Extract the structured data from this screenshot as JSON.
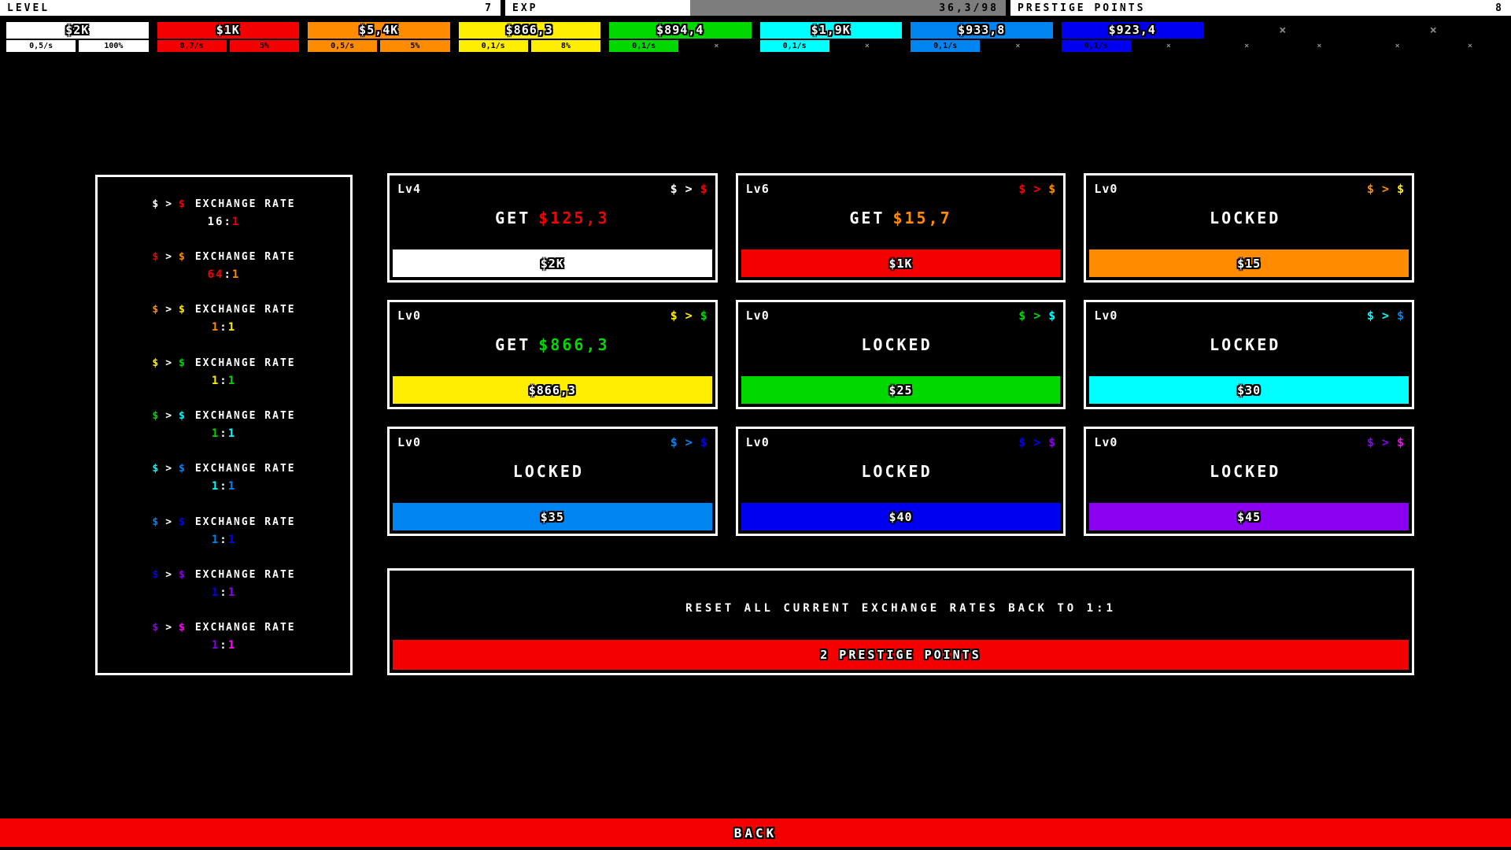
{
  "palette": {
    "white": "#ffffff",
    "red": "#f30000",
    "orange": "#ff8c00",
    "yellow": "#ffee00",
    "green": "#00d800",
    "cyan": "#00ffff",
    "skyblue": "#0084f0",
    "blue": "#0000f0",
    "purple": "#8a00f0",
    "magenta": "#ff00ff",
    "gray": "#7d7d7d",
    "x_mark": "#8a8a8a"
  },
  "header": {
    "level_label": "LEVEL",
    "level_value": "7",
    "exp_label": "EXP",
    "exp_value": "36,3/98",
    "exp_percent": 37,
    "prestige_label": "PRESTIGE POINTS",
    "prestige_value": "8"
  },
  "currencies": [
    {
      "amount": "$2K",
      "color": "white",
      "rate": "0,5/s",
      "rate_bg": "white",
      "percent": "100%",
      "percent_bg": "white"
    },
    {
      "amount": "$1K",
      "color": "red",
      "rate": "0,7/s",
      "rate_bg": "red",
      "percent": "5%",
      "percent_bg": "red"
    },
    {
      "amount": "$5,4K",
      "color": "orange",
      "rate": "0,5/s",
      "rate_bg": "orange",
      "percent": "5%",
      "percent_bg": "orange"
    },
    {
      "amount": "$866,3",
      "color": "yellow",
      "rate": "0,1/s",
      "rate_bg": "yellow",
      "percent": "8%",
      "percent_bg": "yellow"
    },
    {
      "amount": "$894,4",
      "color": "green",
      "rate": "0,1/s",
      "rate_bg": "green",
      "percent": "×",
      "percent_bg": "locked"
    },
    {
      "amount": "$1,9K",
      "color": "cyan",
      "rate": "0,1/s",
      "rate_bg": "cyan",
      "percent": "×",
      "percent_bg": "locked"
    },
    {
      "amount": "$933,8",
      "color": "skyblue",
      "rate": "0,1/s",
      "rate_bg": "skyblue",
      "percent": "×",
      "percent_bg": "locked"
    },
    {
      "amount": "$923,4",
      "color": "blue",
      "rate": "0,1/s",
      "rate_bg": "blue",
      "percent": "×",
      "percent_bg": "locked"
    },
    {
      "amount": "×",
      "color": "locked",
      "rate": "×",
      "rate_bg": "locked",
      "percent": "×",
      "percent_bg": "locked"
    },
    {
      "amount": "×",
      "color": "locked",
      "rate": "×",
      "rate_bg": "locked",
      "percent": "×",
      "percent_bg": "locked"
    }
  ],
  "exchange_rates": {
    "symbol": "$",
    "arrow": ">",
    "separator": ":",
    "row_label": "EXCHANGE RATE",
    "rows": [
      {
        "from": "white",
        "to": "red",
        "lhs": "16",
        "rhs": "1"
      },
      {
        "from": "red",
        "to": "orange",
        "lhs": "64",
        "rhs": "1"
      },
      {
        "from": "orange",
        "to": "yellow",
        "lhs": "1",
        "rhs": "1"
      },
      {
        "from": "yellow",
        "to": "green",
        "lhs": "1",
        "rhs": "1"
      },
      {
        "from": "green",
        "to": "cyan",
        "lhs": "1",
        "rhs": "1"
      },
      {
        "from": "cyan",
        "to": "skyblue",
        "lhs": "1",
        "rhs": "1"
      },
      {
        "from": "skyblue",
        "to": "blue",
        "lhs": "1",
        "rhs": "1"
      },
      {
        "from": "blue",
        "to": "purple",
        "lhs": "1",
        "rhs": "1"
      },
      {
        "from": "purple",
        "to": "magenta",
        "lhs": "1",
        "rhs": "1"
      }
    ]
  },
  "upgrades": [
    {
      "level": "Lv4",
      "from": "white",
      "to": "red",
      "action": "GET",
      "value": "$125,3",
      "cost": "$2K"
    },
    {
      "level": "Lv6",
      "from": "red",
      "to": "orange",
      "action": "GET",
      "value": "$15,7",
      "cost": "$1K"
    },
    {
      "level": "Lv0",
      "from": "orange",
      "to": "yellow",
      "action": "LOCKED",
      "value": "",
      "cost": "$15"
    },
    {
      "level": "Lv0",
      "from": "yellow",
      "to": "green",
      "action": "GET",
      "value": "$866,3",
      "cost": "$866,3"
    },
    {
      "level": "Lv0",
      "from": "green",
      "to": "cyan",
      "action": "LOCKED",
      "value": "",
      "cost": "$25"
    },
    {
      "level": "Lv0",
      "from": "cyan",
      "to": "skyblue",
      "action": "LOCKED",
      "value": "",
      "cost": "$30"
    },
    {
      "level": "Lv0",
      "from": "skyblue",
      "to": "blue",
      "action": "LOCKED",
      "value": "",
      "cost": "$35"
    },
    {
      "level": "Lv0",
      "from": "blue",
      "to": "purple",
      "action": "LOCKED",
      "value": "",
      "cost": "$40"
    },
    {
      "level": "Lv0",
      "from": "purple",
      "to": "magenta",
      "action": "LOCKED",
      "value": "",
      "cost": "$45"
    }
  ],
  "reset_panel": {
    "title": "RESET ALL CURRENT EXCHANGE RATES BACK TO 1:1",
    "button_label": "2 PRESTIGE POINTS"
  },
  "back_button": {
    "label": "BACK"
  }
}
